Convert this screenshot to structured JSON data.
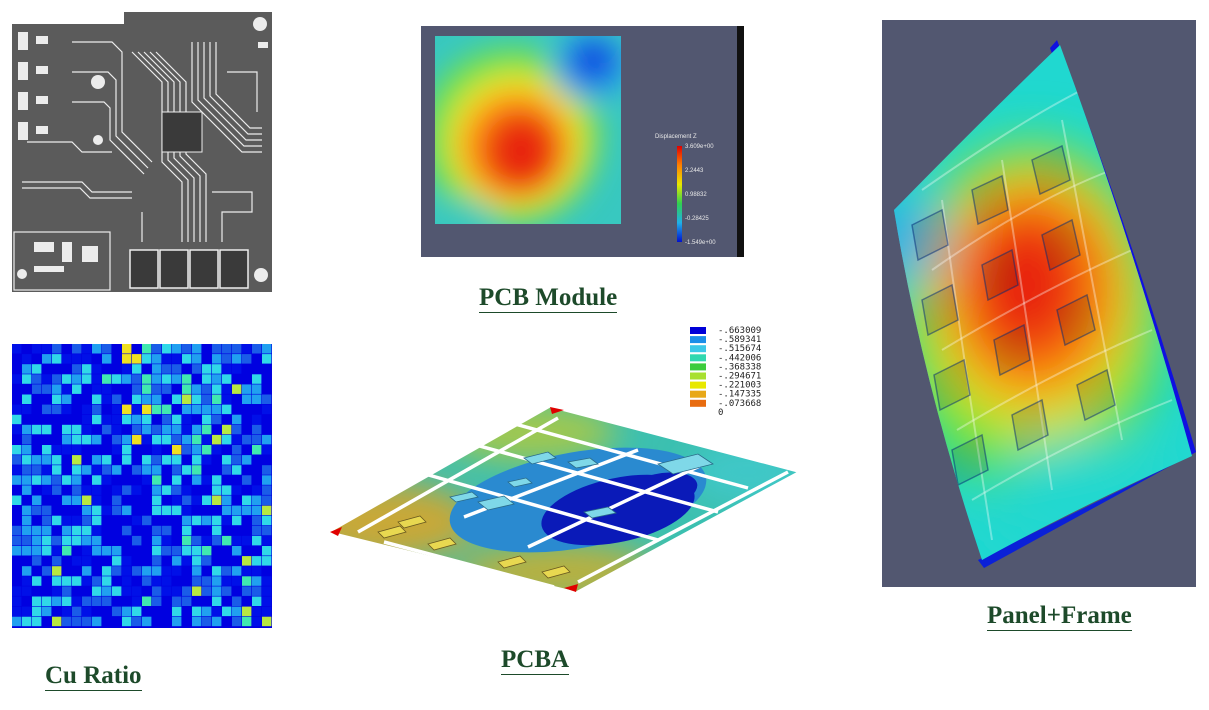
{
  "captions": {
    "cu_ratio": "Cu Ratio",
    "pcb_module": "PCB Module",
    "pcba": "PCBA",
    "panel_frame": "Panel+Frame"
  },
  "pcb_module_colorbar": {
    "title": "Displacement Z",
    "ticks": [
      "3.609e+00",
      "2.2443",
      "0.98832",
      "-0.28425",
      "-1.549e+00"
    ]
  },
  "pcba_legend": {
    "values": [
      "-.663009",
      "-.589341",
      "-.515674",
      "-.442006",
      "-.368338",
      "-.294671",
      "-.221003",
      "-.147335",
      "-.073668",
      "0"
    ],
    "colors": [
      "#0000d8",
      "#1c8ee8",
      "#3cc8e8",
      "#30d8b0",
      "#3ccc3c",
      "#a8e030",
      "#e8e800",
      "#e8a818",
      "#e86c10",
      "#e00000"
    ]
  },
  "colors": {
    "caption": "#1d4a2a",
    "viewport_bg": "#525770",
    "pcb_bg": "#5b5b5b",
    "cu_low": "#0000e0",
    "cu_high": "#ffe000"
  }
}
